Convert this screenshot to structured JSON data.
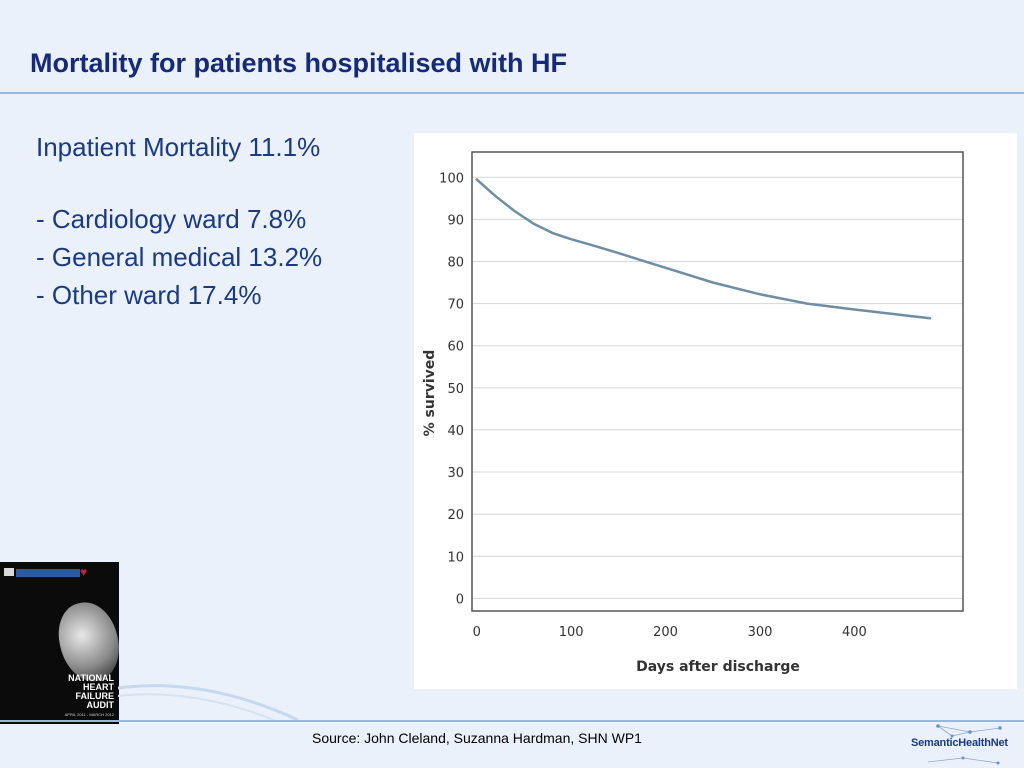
{
  "slide": {
    "title": "Mortality for patients hospitalised with HF",
    "lines": [
      "Inpatient Mortality 11.1%",
      "- Cardiology ward 7.8%",
      "- General medical 13.2%",
      "- Other ward 17.4%"
    ],
    "source": "Source: John Cleland, Suzanna Hardman, SHN WP1"
  },
  "cover": {
    "title_lines": [
      "NATIONAL",
      "HEART",
      "FAILURE",
      "AUDIT"
    ],
    "date": "APRIL 2011 - MARCH 2012"
  },
  "logo": {
    "text": "SemanticHealthNet"
  },
  "colors": {
    "title": "#152a7a",
    "body_text": "#1a3a86",
    "curve": "#6e8fa3",
    "background": "#eaf1fb"
  },
  "chart_data": {
    "type": "line",
    "title": "",
    "xlabel": "Days after discharge",
    "ylabel": "% survived",
    "xlim": [
      -5,
      515
    ],
    "ylim": [
      -3,
      106
    ],
    "x_ticks": [
      0,
      100,
      200,
      300,
      400
    ],
    "y_ticks": [
      0,
      10,
      20,
      30,
      40,
      50,
      60,
      70,
      80,
      90,
      100
    ],
    "grid": "horizontal",
    "series": [
      {
        "name": "",
        "x": [
          0,
          20,
          40,
          60,
          80,
          100,
          120,
          150,
          200,
          250,
          300,
          350,
          400,
          450,
          480
        ],
        "y": [
          99.5,
          95.5,
          92,
          89,
          86.8,
          85.3,
          84,
          82,
          78.5,
          75,
          72.2,
          70,
          68.6,
          67.3,
          66.5
        ]
      }
    ]
  }
}
